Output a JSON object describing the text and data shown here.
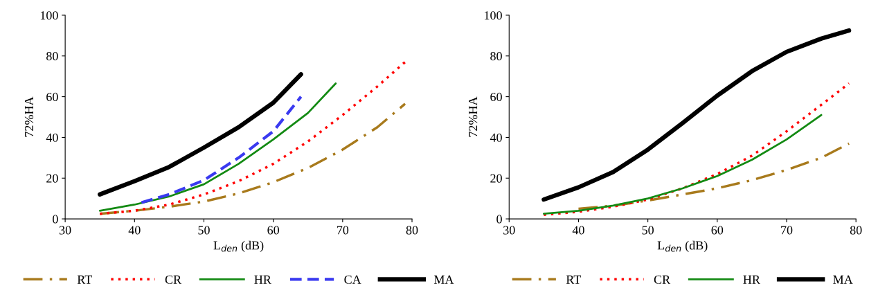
{
  "chart_data": [
    {
      "type": "line",
      "xlabel": "L$_{den}$ (dB)",
      "ylabel": "72%HA",
      "xlim": [
        30,
        80
      ],
      "xticks": [
        30,
        40,
        50,
        60,
        70,
        80
      ],
      "ylim": [
        0,
        100
      ],
      "yticks": [
        0,
        20,
        40,
        60,
        80,
        100
      ],
      "grid": false,
      "legend": "bottom",
      "series": [
        {
          "name": "RT",
          "color": "#a87a1c",
          "line_style": "dashdot",
          "x": [
            35,
            40,
            45,
            50,
            55,
            60,
            65,
            70,
            75,
            79
          ],
          "values": [
            2.5,
            4,
            6,
            8.5,
            12.5,
            18,
            25,
            34,
            45,
            56.5
          ]
        },
        {
          "name": "CR",
          "color": "#ff0000",
          "line_style": "dotted",
          "x": [
            35,
            40,
            45,
            50,
            55,
            60,
            65,
            70,
            75,
            79
          ],
          "values": [
            2.5,
            4,
            7,
            12,
            18.5,
            27,
            38,
            51,
            65,
            77
          ]
        },
        {
          "name": "HR",
          "color": "#138a13",
          "line_style": "solid",
          "x": [
            35,
            40,
            45,
            50,
            55,
            60,
            65,
            69
          ],
          "values": [
            4,
            7,
            11,
            17,
            27,
            39,
            52,
            66.5
          ]
        },
        {
          "name": "CA",
          "color": "#3a3af0",
          "line_style": "dashed",
          "x": [
            41,
            45,
            50,
            55,
            60,
            64
          ],
          "values": [
            8,
            12,
            19,
            30,
            43,
            60
          ]
        },
        {
          "name": "MA",
          "color": "#000000",
          "line_style": "solid",
          "x": [
            35,
            40,
            45,
            50,
            55,
            60,
            64
          ],
          "values": [
            12,
            18.5,
            25.5,
            35,
            45,
            57,
            71
          ]
        }
      ]
    },
    {
      "type": "line",
      "xlabel": "L$_{den}$ (dB)",
      "ylabel": "72%HA",
      "xlim": [
        30,
        80
      ],
      "xticks": [
        30,
        40,
        50,
        60,
        70,
        80
      ],
      "ylim": [
        0,
        100
      ],
      "yticks": [
        0,
        20,
        40,
        60,
        80,
        100
      ],
      "grid": false,
      "legend": "bottom",
      "series": [
        {
          "name": "RT",
          "color": "#a87a1c",
          "line_style": "dashdot",
          "x": [
            40,
            45,
            50,
            55,
            60,
            65,
            70,
            75,
            79
          ],
          "values": [
            5,
            6.5,
            9,
            12,
            15,
            19,
            24,
            30,
            37
          ]
        },
        {
          "name": "CR",
          "color": "#ff0000",
          "line_style": "dotted",
          "x": [
            35,
            40,
            45,
            50,
            55,
            60,
            65,
            70,
            75,
            79
          ],
          "values": [
            2,
            3.5,
            6,
            9.5,
            15,
            22,
            31,
            43,
            56,
            66.5
          ]
        },
        {
          "name": "HR",
          "color": "#138a13",
          "line_style": "solid",
          "x": [
            35,
            40,
            45,
            50,
            55,
            60,
            65,
            70,
            75
          ],
          "values": [
            2.5,
            4,
            6.5,
            10,
            15,
            21,
            29,
            39,
            51
          ]
        },
        {
          "name": "MA",
          "color": "#000000",
          "line_style": "solid",
          "x": [
            35,
            40,
            45,
            50,
            55,
            60,
            65,
            70,
            75,
            79
          ],
          "values": [
            9.5,
            15.5,
            23,
            34,
            47,
            60.5,
            72.5,
            82,
            88.5,
            92.5
          ]
        }
      ]
    }
  ]
}
